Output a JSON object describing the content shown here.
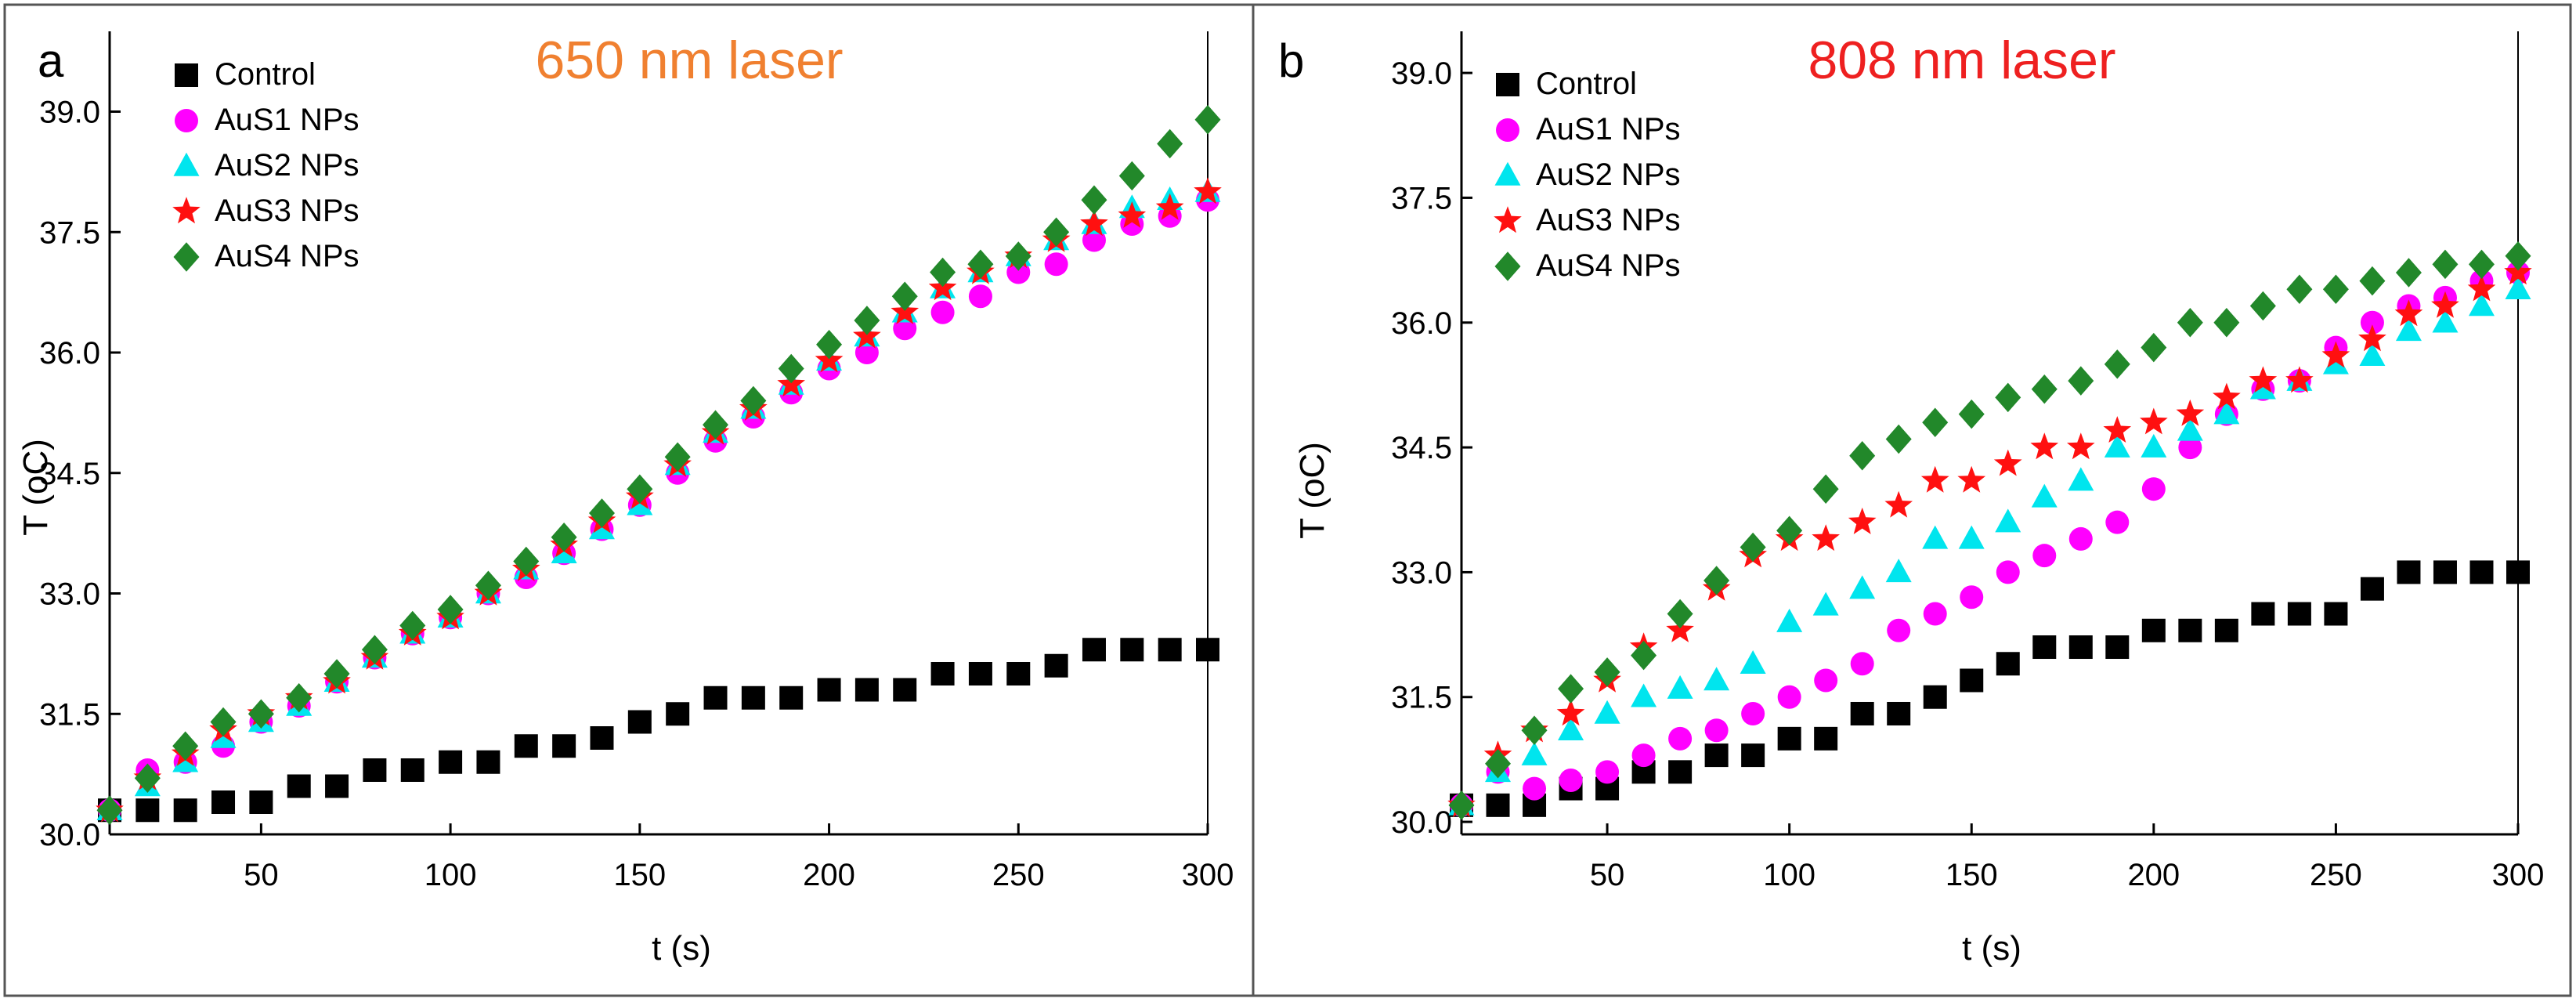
{
  "chart_data": [
    {
      "type": "scatter",
      "panel_label": "a",
      "title": "650 nm laser",
      "title_color": "#f08030",
      "xlabel": "t (s)",
      "ylabel": "T (oC)",
      "xlim": [
        10,
        300
      ],
      "ylim": [
        30.0,
        40.0
      ],
      "xticks": [
        "50",
        "100",
        "150",
        "200",
        "250",
        "300"
      ],
      "yticks": [
        "30.0",
        "31.5",
        "33.0",
        "34.5",
        "36.0",
        "37.5",
        "39.0"
      ],
      "x": [
        10,
        20,
        30,
        40,
        50,
        60,
        70,
        80,
        90,
        100,
        110,
        120,
        130,
        140,
        150,
        160,
        170,
        180,
        190,
        200,
        210,
        220,
        230,
        240,
        250,
        260,
        270,
        280,
        290,
        300
      ],
      "series": [
        {
          "name": "Control",
          "marker": "square",
          "color": "#000000",
          "values": [
            30.3,
            30.3,
            30.3,
            30.4,
            30.4,
            30.6,
            30.6,
            30.8,
            30.8,
            30.9,
            30.9,
            31.1,
            31.1,
            31.2,
            31.4,
            31.5,
            31.7,
            31.7,
            31.7,
            31.8,
            31.8,
            31.8,
            32.0,
            32.0,
            32.0,
            32.1,
            32.3,
            32.3,
            32.3,
            32.3
          ]
        },
        {
          "name": "AuS1 NPs",
          "marker": "circle",
          "color": "#ff00ff",
          "values": [
            30.3,
            30.8,
            30.9,
            31.1,
            31.4,
            31.6,
            31.9,
            32.2,
            32.5,
            32.7,
            33.0,
            33.2,
            33.5,
            33.8,
            34.1,
            34.5,
            34.9,
            35.2,
            35.5,
            35.8,
            36.0,
            36.3,
            36.5,
            36.7,
            37.0,
            37.1,
            37.4,
            37.6,
            37.7,
            37.9
          ]
        },
        {
          "name": "AuS2 NPs",
          "marker": "triangle",
          "color": "#00e5ee",
          "values": [
            30.3,
            30.6,
            30.9,
            31.2,
            31.4,
            31.6,
            31.9,
            32.2,
            32.5,
            32.7,
            33.0,
            33.3,
            33.5,
            33.8,
            34.1,
            34.6,
            35.0,
            35.3,
            35.6,
            35.9,
            36.2,
            36.5,
            36.8,
            37.0,
            37.2,
            37.4,
            37.6,
            37.8,
            37.9,
            38.0
          ]
        },
        {
          "name": "AuS3 NPs",
          "marker": "star",
          "color": "#ff1010",
          "values": [
            30.3,
            30.7,
            31.0,
            31.3,
            31.5,
            31.7,
            31.9,
            32.2,
            32.5,
            32.7,
            33.0,
            33.3,
            33.6,
            33.9,
            34.2,
            34.6,
            35.0,
            35.3,
            35.6,
            35.9,
            36.2,
            36.5,
            36.8,
            37.0,
            37.2,
            37.4,
            37.6,
            37.7,
            37.8,
            38.0
          ]
        },
        {
          "name": "AuS4 NPs",
          "marker": "diamond",
          "color": "#22882a",
          "values": [
            30.3,
            30.7,
            31.1,
            31.4,
            31.5,
            31.7,
            32.0,
            32.3,
            32.6,
            32.8,
            33.1,
            33.4,
            33.7,
            34.0,
            34.3,
            34.7,
            35.1,
            35.4,
            35.8,
            36.1,
            36.4,
            36.7,
            37.0,
            37.1,
            37.2,
            37.5,
            37.9,
            38.2,
            38.6,
            38.9
          ]
        }
      ]
    },
    {
      "type": "scatter",
      "panel_label": "b",
      "title": "808 nm laser",
      "title_color": "#ee2020",
      "xlabel": "t (s)",
      "ylabel": "T (oC)",
      "xlim": [
        10,
        300
      ],
      "ylim": [
        29.85,
        39.5
      ],
      "xticks": [
        "50",
        "100",
        "150",
        "200",
        "250",
        "300"
      ],
      "yticks": [
        "30.0",
        "31.5",
        "33.0",
        "34.5",
        "36.0",
        "37.5",
        "39.0"
      ],
      "x": [
        10,
        20,
        30,
        40,
        50,
        60,
        70,
        80,
        90,
        100,
        110,
        120,
        130,
        140,
        150,
        160,
        170,
        180,
        190,
        200,
        210,
        220,
        230,
        240,
        250,
        260,
        270,
        280,
        290,
        300
      ],
      "series": [
        {
          "name": "Control",
          "marker": "square",
          "color": "#000000",
          "values": [
            30.2,
            30.2,
            30.2,
            30.4,
            30.4,
            30.6,
            30.6,
            30.8,
            30.8,
            31.0,
            31.0,
            31.3,
            31.3,
            31.5,
            31.7,
            31.9,
            32.1,
            32.1,
            32.1,
            32.3,
            32.3,
            32.3,
            32.5,
            32.5,
            32.5,
            32.8,
            33.0,
            33.0,
            33.0,
            33.0
          ]
        },
        {
          "name": "AuS1 NPs",
          "marker": "circle",
          "color": "#ff00ff",
          "values": [
            30.2,
            30.6,
            30.4,
            30.5,
            30.6,
            30.8,
            31.0,
            31.1,
            31.3,
            31.5,
            31.7,
            31.9,
            32.3,
            32.5,
            32.7,
            33.0,
            33.2,
            33.4,
            33.6,
            34.0,
            34.5,
            34.9,
            35.2,
            35.3,
            35.7,
            36.0,
            36.2,
            36.3,
            36.5,
            36.6
          ]
        },
        {
          "name": "AuS2 NPs",
          "marker": "triangle",
          "color": "#00e5ee",
          "values": [
            30.2,
            30.6,
            30.8,
            31.1,
            31.3,
            31.5,
            31.6,
            31.7,
            31.9,
            32.4,
            32.6,
            32.8,
            33.0,
            33.4,
            33.4,
            33.6,
            33.9,
            34.1,
            34.5,
            34.5,
            34.7,
            34.9,
            35.2,
            35.3,
            35.5,
            35.6,
            35.9,
            36.0,
            36.2,
            36.4
          ]
        },
        {
          "name": "AuS3 NPs",
          "marker": "star",
          "color": "#ff1010",
          "values": [
            30.2,
            30.8,
            31.1,
            31.3,
            31.7,
            32.1,
            32.3,
            32.8,
            33.2,
            33.4,
            33.4,
            33.6,
            33.8,
            34.1,
            34.1,
            34.3,
            34.5,
            34.5,
            34.7,
            34.8,
            34.9,
            35.1,
            35.3,
            35.3,
            35.6,
            35.8,
            36.1,
            36.2,
            36.4,
            36.6
          ]
        },
        {
          "name": "AuS4 NPs",
          "marker": "diamond",
          "color": "#22882a",
          "values": [
            30.2,
            30.7,
            31.1,
            31.6,
            31.8,
            32.0,
            32.5,
            32.9,
            33.3,
            33.5,
            34.0,
            34.4,
            34.6,
            34.8,
            34.9,
            35.1,
            35.2,
            35.3,
            35.5,
            35.7,
            36.0,
            36.0,
            36.2,
            36.4,
            36.4,
            36.5,
            36.6,
            36.7,
            36.7,
            36.8
          ]
        }
      ]
    }
  ]
}
